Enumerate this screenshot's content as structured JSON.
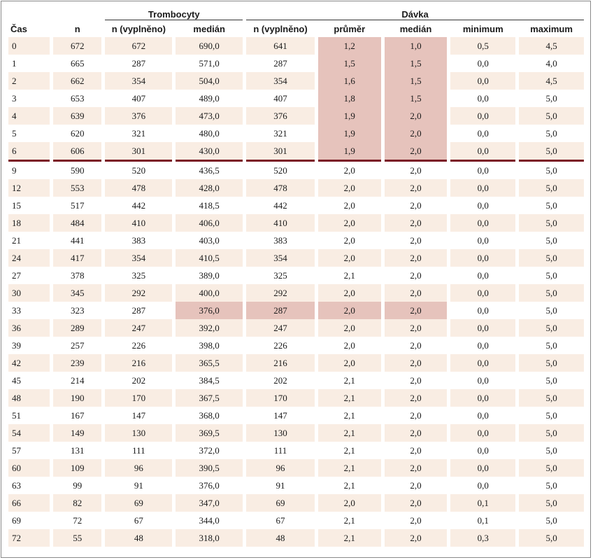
{
  "header": {
    "group_trombocyty": "Trombocyty",
    "group_davka": "Dávka",
    "columns": [
      "Čas",
      "n",
      "n (vyplněno)",
      "medián",
      "n (vyplněno)",
      "průměr",
      "medián",
      "minimum",
      "maximum"
    ]
  },
  "highlight_color": "#e6c3bc",
  "stripe_color": "#f9ede3",
  "separator_color": "#7b1c26",
  "separator_after_row": 6,
  "highlighted_cells": [
    [
      0,
      5
    ],
    [
      0,
      6
    ],
    [
      1,
      5
    ],
    [
      1,
      6
    ],
    [
      2,
      5
    ],
    [
      2,
      6
    ],
    [
      3,
      5
    ],
    [
      3,
      6
    ],
    [
      4,
      5
    ],
    [
      4,
      6
    ],
    [
      5,
      5
    ],
    [
      5,
      6
    ],
    [
      6,
      5
    ],
    [
      6,
      6
    ],
    [
      15,
      3
    ],
    [
      15,
      4
    ],
    [
      15,
      5
    ],
    [
      15,
      6
    ]
  ],
  "rows": [
    [
      "0",
      "672",
      "672",
      "690,0",
      "641",
      "1,2",
      "1,0",
      "0,5",
      "4,5"
    ],
    [
      "1",
      "665",
      "287",
      "571,0",
      "287",
      "1,5",
      "1,5",
      "0,0",
      "4,0"
    ],
    [
      "2",
      "662",
      "354",
      "504,0",
      "354",
      "1,6",
      "1,5",
      "0,0",
      "4,5"
    ],
    [
      "3",
      "653",
      "407",
      "489,0",
      "407",
      "1,8",
      "1,5",
      "0,0",
      "5,0"
    ],
    [
      "4",
      "639",
      "376",
      "473,0",
      "376",
      "1,9",
      "2,0",
      "0,0",
      "5,0"
    ],
    [
      "5",
      "620",
      "321",
      "480,0",
      "321",
      "1,9",
      "2,0",
      "0,0",
      "5,0"
    ],
    [
      "6",
      "606",
      "301",
      "430,0",
      "301",
      "1,9",
      "2,0",
      "0,0",
      "5,0"
    ],
    [
      "9",
      "590",
      "520",
      "436,5",
      "520",
      "2,0",
      "2,0",
      "0,0",
      "5,0"
    ],
    [
      "12",
      "553",
      "478",
      "428,0",
      "478",
      "2,0",
      "2,0",
      "0,0",
      "5,0"
    ],
    [
      "15",
      "517",
      "442",
      "418,5",
      "442",
      "2,0",
      "2,0",
      "0,0",
      "5,0"
    ],
    [
      "18",
      "484",
      "410",
      "406,0",
      "410",
      "2,0",
      "2,0",
      "0,0",
      "5,0"
    ],
    [
      "21",
      "441",
      "383",
      "403,0",
      "383",
      "2,0",
      "2,0",
      "0,0",
      "5,0"
    ],
    [
      "24",
      "417",
      "354",
      "410,5",
      "354",
      "2,0",
      "2,0",
      "0,0",
      "5,0"
    ],
    [
      "27",
      "378",
      "325",
      "389,0",
      "325",
      "2,1",
      "2,0",
      "0,0",
      "5,0"
    ],
    [
      "30",
      "345",
      "292",
      "400,0",
      "292",
      "2,0",
      "2,0",
      "0,0",
      "5,0"
    ],
    [
      "33",
      "323",
      "287",
      "376,0",
      "287",
      "2,0",
      "2,0",
      "0,0",
      "5,0"
    ],
    [
      "36",
      "289",
      "247",
      "392,0",
      "247",
      "2,0",
      "2,0",
      "0,0",
      "5,0"
    ],
    [
      "39",
      "257",
      "226",
      "398,0",
      "226",
      "2,0",
      "2,0",
      "0,0",
      "5,0"
    ],
    [
      "42",
      "239",
      "216",
      "365,5",
      "216",
      "2,0",
      "2,0",
      "0,0",
      "5,0"
    ],
    [
      "45",
      "214",
      "202",
      "384,5",
      "202",
      "2,1",
      "2,0",
      "0,0",
      "5,0"
    ],
    [
      "48",
      "190",
      "170",
      "367,5",
      "170",
      "2,1",
      "2,0",
      "0,0",
      "5,0"
    ],
    [
      "51",
      "167",
      "147",
      "368,0",
      "147",
      "2,1",
      "2,0",
      "0,0",
      "5,0"
    ],
    [
      "54",
      "149",
      "130",
      "369,5",
      "130",
      "2,1",
      "2,0",
      "0,0",
      "5,0"
    ],
    [
      "57",
      "131",
      "111",
      "372,0",
      "111",
      "2,1",
      "2,0",
      "0,0",
      "5,0"
    ],
    [
      "60",
      "109",
      "96",
      "390,5",
      "96",
      "2,1",
      "2,0",
      "0,0",
      "5,0"
    ],
    [
      "63",
      "99",
      "91",
      "376,0",
      "91",
      "2,1",
      "2,0",
      "0,0",
      "5,0"
    ],
    [
      "66",
      "82",
      "69",
      "347,0",
      "69",
      "2,0",
      "2,0",
      "0,1",
      "5,0"
    ],
    [
      "69",
      "72",
      "67",
      "344,0",
      "67",
      "2,1",
      "2,0",
      "0,1",
      "5,0"
    ],
    [
      "72",
      "55",
      "48",
      "318,0",
      "48",
      "2,1",
      "2,0",
      "0,3",
      "5,0"
    ]
  ]
}
